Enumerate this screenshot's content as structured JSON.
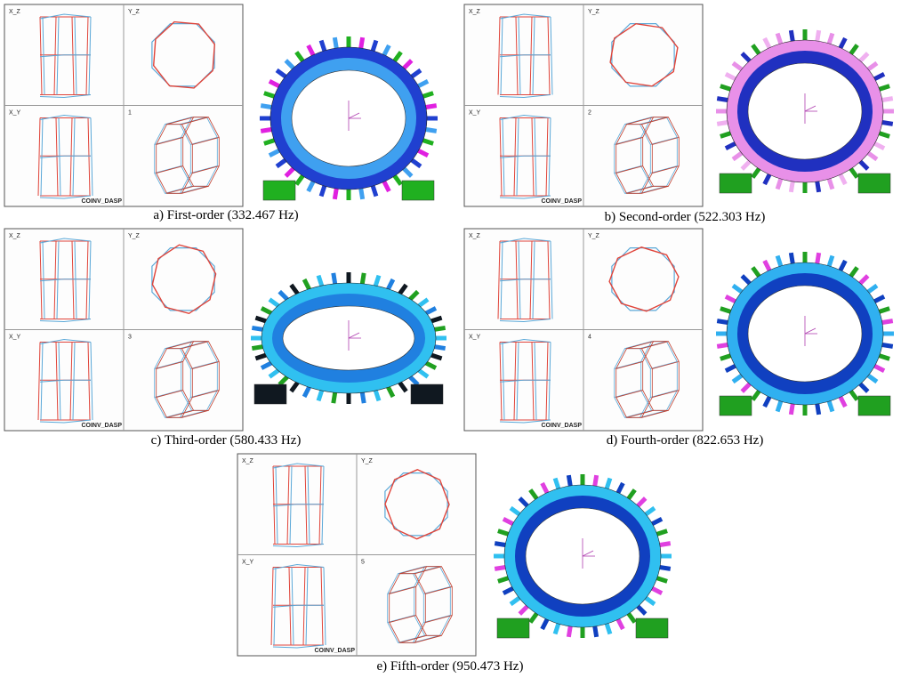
{
  "panels": [
    {
      "views": [
        "X_Z",
        "Y_Z",
        "X_Y",
        "1"
      ],
      "brand": "COINV_DASP",
      "caption": "a) First-order (332.467 Hz)"
    },
    {
      "views": [
        "X_Z",
        "Y_Z",
        "X_Y",
        "2"
      ],
      "brand": "COINV_DASP",
      "caption": "b) Second-order (522.303 Hz)"
    },
    {
      "views": [
        "X_Z",
        "Y_Z",
        "X_Y",
        "3"
      ],
      "brand": "COINV_DASP",
      "caption": "c) Third-order (580.433 Hz)"
    },
    {
      "views": [
        "X_Z",
        "Y_Z",
        "X_Y",
        "4"
      ],
      "brand": "COINV_DASP",
      "caption": "d) Fourth-order (822.653 Hz)"
    },
    {
      "views": [
        "X_Z",
        "Y_Z",
        "X_Y",
        "5"
      ],
      "brand": "COINV_DASP",
      "caption": "e) Fifth-order (950.473 Hz)"
    }
  ]
}
